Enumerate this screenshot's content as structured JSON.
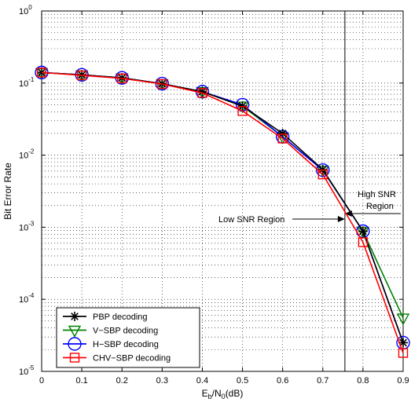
{
  "chart_data": {
    "type": "line",
    "xlabel": {
      "main": "E",
      "sub1": "b",
      "mid": "/N",
      "sub2": "0",
      "tail": "(dB)"
    },
    "ylabel": "Bit Error Rate",
    "x": [
      0,
      0.1,
      0.2,
      0.3,
      0.4,
      0.5,
      0.6,
      0.7,
      0.8,
      0.9
    ],
    "xlim": [
      0,
      0.9
    ],
    "ylim": [
      1e-05,
      1
    ],
    "yscale": "log",
    "xticks": [
      "0",
      "0.1",
      "0.2",
      "0.3",
      "0.4",
      "0.5",
      "0.6",
      "0.7",
      "0.8",
      "0.9"
    ],
    "yticks": [
      {
        "base": "10",
        "exp": "0",
        "value": 1
      },
      {
        "base": "10",
        "exp": "-1",
        "value": 0.1
      },
      {
        "base": "10",
        "exp": "-2",
        "value": 0.01
      },
      {
        "base": "10",
        "exp": "-3",
        "value": 0.001
      },
      {
        "base": "10",
        "exp": "-4",
        "value": 0.0001
      },
      {
        "base": "10",
        "exp": "-5",
        "value": 1e-05
      }
    ],
    "grid": true,
    "legend_position": "bottom-left",
    "series": [
      {
        "name": "PBP decoding",
        "color": "#000000",
        "marker": "asterisk",
        "values": [
          0.14,
          0.13,
          0.118,
          0.098,
          0.076,
          0.048,
          0.02,
          0.0063,
          0.00088,
          2.5e-05
        ]
      },
      {
        "name": "V−SBP decoding",
        "color": "#008000",
        "marker": "triangle-down",
        "values": [
          0.14,
          0.13,
          0.118,
          0.098,
          0.076,
          0.048,
          0.018,
          0.0062,
          0.00088,
          5.5e-05
        ]
      },
      {
        "name": "H−SBP decoding",
        "color": "#0000ff",
        "marker": "circle",
        "values": [
          0.14,
          0.13,
          0.118,
          0.098,
          0.076,
          0.05,
          0.018,
          0.0062,
          0.00088,
          2.5e-05
        ]
      },
      {
        "name": "CHV−SBP decoding",
        "color": "#ff0000",
        "marker": "square",
        "values": [
          0.14,
          0.128,
          0.116,
          0.097,
          0.073,
          0.041,
          0.017,
          0.0054,
          0.00062,
          1.8e-05
        ]
      }
    ],
    "annotations": {
      "vline_x": 0.755,
      "high_label_line1": "High SNR",
      "high_label_line2": "Region",
      "low_label": "Low SNR Region"
    }
  }
}
